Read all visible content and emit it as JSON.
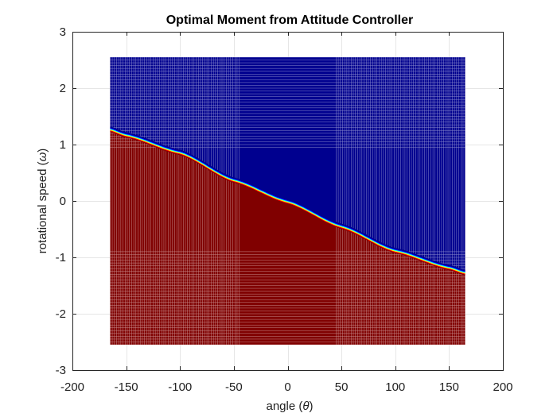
{
  "chart_data": {
    "type": "heatmap",
    "title": "Optimal Moment from Attitude Controller",
    "xlabel_text": "angle (",
    "xlabel_symbol": "θ",
    "xlabel_close": ")",
    "ylabel_text": "rotational speed (",
    "ylabel_symbol": "ω",
    "ylabel_close": ")",
    "xlim": [
      -200,
      200
    ],
    "ylim": [
      -3,
      3
    ],
    "xticks": [
      -200,
      -150,
      -100,
      -50,
      0,
      50,
      100,
      150,
      200
    ],
    "yticks": [
      -3,
      -2,
      -1,
      0,
      1,
      2,
      3
    ],
    "xtick_labels": [
      "-200",
      "-150",
      "-100",
      "-50",
      "0",
      "50",
      "100",
      "150",
      "200"
    ],
    "ytick_labels": [
      "-3",
      "-2",
      "-1",
      "0",
      "1",
      "2",
      "3"
    ],
    "grid": true,
    "data_domain": {
      "x": [
        -165,
        165
      ],
      "y": [
        -2.55,
        2.55
      ]
    },
    "dense_grid_band": {
      "x_abs_min": 45,
      "y_abs_min": 0.9
    },
    "switching_curve": {
      "x": [
        -165,
        -150,
        -100,
        -50,
        0,
        50,
        100,
        150,
        165
      ],
      "y": [
        1.27,
        1.17,
        0.86,
        0.37,
        -0.01,
        -0.45,
        -0.88,
        -1.18,
        -1.27
      ]
    },
    "regions": [
      {
        "position": "above switching curve",
        "color": "#00008f"
      },
      {
        "position": "below switching curve",
        "color": "#800000"
      }
    ],
    "transition_colors": [
      "#800000",
      "#ff0000",
      "#ffff00",
      "#00ffff",
      "#0000ff",
      "#00008f"
    ],
    "grid_line_colors": {
      "blue_region": "#ffffff",
      "red_region": "#ffffff"
    }
  }
}
